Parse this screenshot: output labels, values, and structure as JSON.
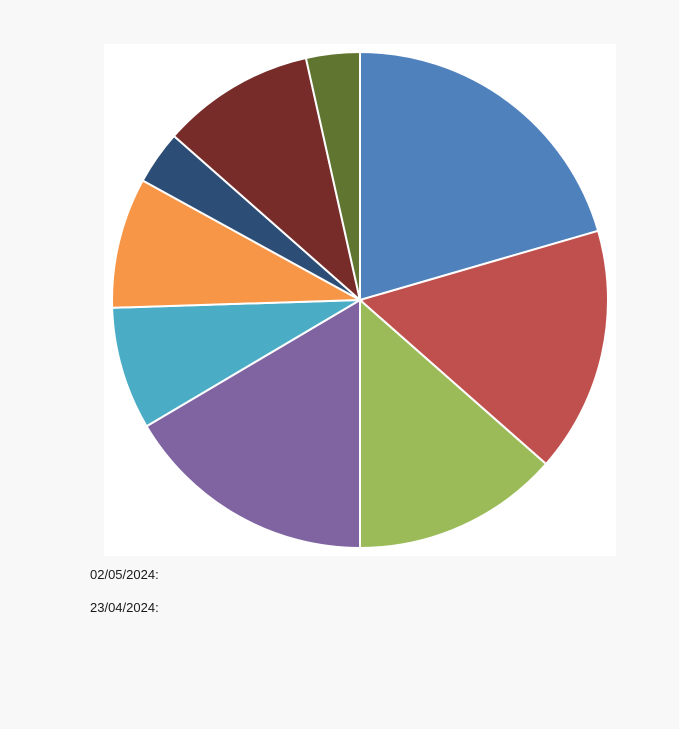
{
  "chart_data": {
    "type": "pie",
    "title": "",
    "start_angle": "12 o'clock",
    "direction": "clockwise",
    "slices": [
      {
        "value": 20.5,
        "color": "#4f81bd",
        "label": ""
      },
      {
        "value": 16.0,
        "color": "#c0504d",
        "label": ""
      },
      {
        "value": 13.5,
        "color": "#9bbb59",
        "label": ""
      },
      {
        "value": 16.5,
        "color": "#8064a2",
        "label": ""
      },
      {
        "value": 8.0,
        "color": "#4bacc6",
        "label": ""
      },
      {
        "value": 8.5,
        "color": "#f79646",
        "label": ""
      },
      {
        "value": 3.5,
        "color": "#2c4d75",
        "label": ""
      },
      {
        "value": 10.0,
        "color": "#772c2a",
        "label": ""
      },
      {
        "value": 3.5,
        "color": "#5f7530",
        "label": ""
      }
    ]
  },
  "notes": [
    {
      "date": "02/05/2024:",
      "text": ""
    },
    {
      "date": "23/04/2024:",
      "text": ""
    },
    {
      "date": "",
      "text": ""
    },
    {
      "date": "",
      "text": ""
    },
    {
      "date": "",
      "text": ""
    }
  ]
}
